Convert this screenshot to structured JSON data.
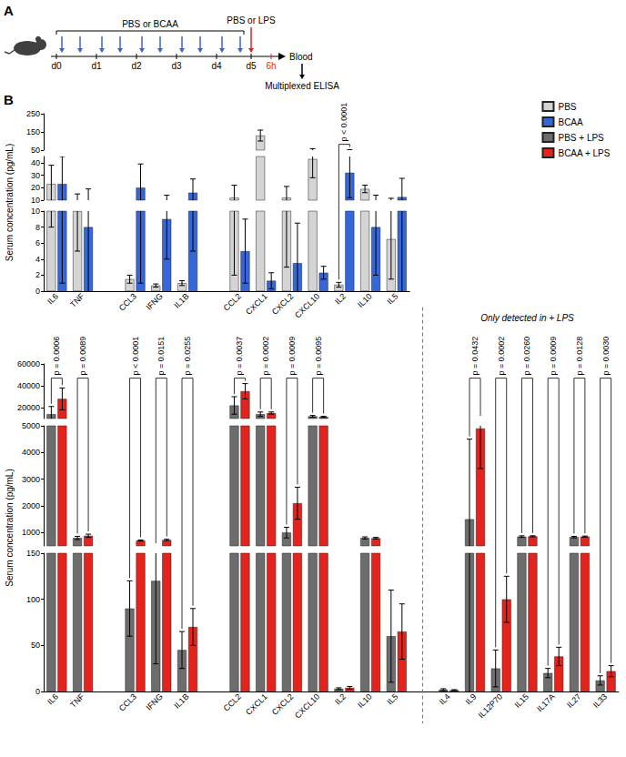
{
  "panel_labels": [
    "A",
    "B"
  ],
  "schematic": {
    "injection_label": "PBS or BCAA",
    "challenge_label": "PBS or LPS",
    "days": [
      "d0",
      "d1",
      "d2",
      "d3",
      "d4",
      "d5"
    ],
    "end_label": "6h",
    "sample": "Blood",
    "assay": "Multiplexed ELISA"
  },
  "chart_data": [
    {
      "type": "bar",
      "ylabel": "Serum concentration (pg/mL)",
      "legend": "top-right",
      "categories": [
        "IL6",
        "TNF",
        null,
        "CCL3",
        "IFNG",
        "IL1B",
        null,
        "CCL2",
        "CXCL1",
        "CXCL2",
        "CXCL10",
        "IL2",
        "IL10",
        "IL5"
      ],
      "y_segments": [
        {
          "ylim": [
            0,
            10
          ],
          "yticks": [
            0,
            2,
            4,
            6,
            8,
            10
          ]
        },
        {
          "ylim": [
            10,
            45
          ],
          "yticks": [
            10,
            20,
            30,
            40
          ]
        },
        {
          "ylim": [
            50,
            250
          ],
          "yticks": [
            50,
            150,
            250
          ]
        }
      ],
      "series": [
        {
          "name": "PBS",
          "color": "#d4d4d4",
          "values": [
            23,
            10,
            null,
            1.5,
            0.7,
            1,
            null,
            12,
            130,
            12,
            43,
            0.8,
            19,
            6.5
          ],
          "error": [
            15,
            5,
            null,
            0.5,
            0.2,
            0.3,
            null,
            10,
            30,
            9,
            15,
            0.3,
            3,
            5
          ]
        },
        {
          "name": "BCAA",
          "color": "#3567d8",
          "values": [
            23,
            8,
            null,
            20,
            9,
            16,
            null,
            5,
            1.3,
            3.5,
            2.3,
            32,
            8,
            12.5
          ],
          "error": [
            22,
            11,
            null,
            19,
            5,
            11,
            null,
            4,
            1,
            5,
            0.8,
            20,
            6,
            15
          ]
        }
      ],
      "annotations": [
        {
          "category": "IL2",
          "text": "p < 0.0001"
        }
      ]
    },
    {
      "type": "bar",
      "ylabel": "Serum concentration (pg/mL)",
      "legend": "top-right",
      "categories": [
        "IL6",
        "TNF",
        null,
        "CCL3",
        "IFNG",
        "IL1B",
        null,
        "CCL2",
        "CXCL1",
        "CXCL2",
        "CXCL10",
        "IL2",
        "IL10",
        "IL5",
        null,
        "IL4",
        "IL9",
        "IL12P70",
        "IL15",
        "IL17A",
        "IL27",
        "IL33"
      ],
      "y_segments": [
        {
          "ylim": [
            0,
            150
          ],
          "yticks": [
            0,
            50,
            100,
            150
          ]
        },
        {
          "ylim": [
            500,
            5000
          ],
          "yticks": [
            1000,
            2000,
            3000,
            4000,
            5000
          ]
        },
        {
          "ylim": [
            10000,
            60000
          ],
          "yticks": [
            20000,
            40000,
            60000
          ]
        }
      ],
      "series": [
        {
          "name": "PBS + LPS",
          "color": "#6d6d6d",
          "values": [
            14000,
            800,
            null,
            90,
            120,
            45,
            null,
            22000,
            14000,
            1000,
            12000,
            3,
            800,
            60,
            null,
            2,
            1500,
            25,
            850,
            20,
            830,
            12
          ],
          "error": [
            7000,
            60,
            null,
            30,
            90,
            20,
            null,
            8000,
            2000,
            200,
            800,
            1,
            40,
            50,
            null,
            1,
            3000,
            20,
            30,
            5,
            30,
            5
          ]
        },
        {
          "name": "BCAA + LPS",
          "color": "#e3231c",
          "values": [
            28000,
            880,
            null,
            700,
            720,
            70,
            null,
            35000,
            15000,
            2100,
            11500,
            4,
            790,
            65,
            null,
            1.5,
            4900,
            100,
            860,
            38,
            850,
            22
          ],
          "error": [
            10000,
            60,
            null,
            20,
            30,
            20,
            null,
            7000,
            1000,
            600,
            500,
            1.5,
            30,
            30,
            null,
            0.5,
            1500,
            25,
            20,
            10,
            20,
            6
          ]
        }
      ],
      "annotations": [
        {
          "category": "IL6",
          "text": "p = 0.0006"
        },
        {
          "category": "TNF",
          "text": "p = 0.0089"
        },
        {
          "category": "CCL3",
          "text": "p < 0.0001"
        },
        {
          "category": "IFNG",
          "text": "p = 0.0151"
        },
        {
          "category": "IL1B",
          "text": "p = 0.0255"
        },
        {
          "category": "CCL2",
          "text": "p = 0.0037"
        },
        {
          "category": "CXCL1",
          "text": "p = 0.0002"
        },
        {
          "category": "CXCL2",
          "text": "p = 0.0009"
        },
        {
          "category": "CXCL10",
          "text": "p = 0.0095"
        },
        {
          "category": "IL9",
          "text": "p = 0.0432"
        },
        {
          "category": "IL12P70",
          "text": "p = 0.0002"
        },
        {
          "category": "IL15",
          "text": "p = 0.0260"
        },
        {
          "category": "IL17A",
          "text": "p = 0.0009"
        },
        {
          "category": "IL27",
          "text": "p = 0.0128"
        },
        {
          "category": "IL33",
          "text": "p = 0.0030"
        }
      ],
      "section_note": {
        "text": "Only detected in + LPS",
        "start": "IL4"
      }
    }
  ]
}
